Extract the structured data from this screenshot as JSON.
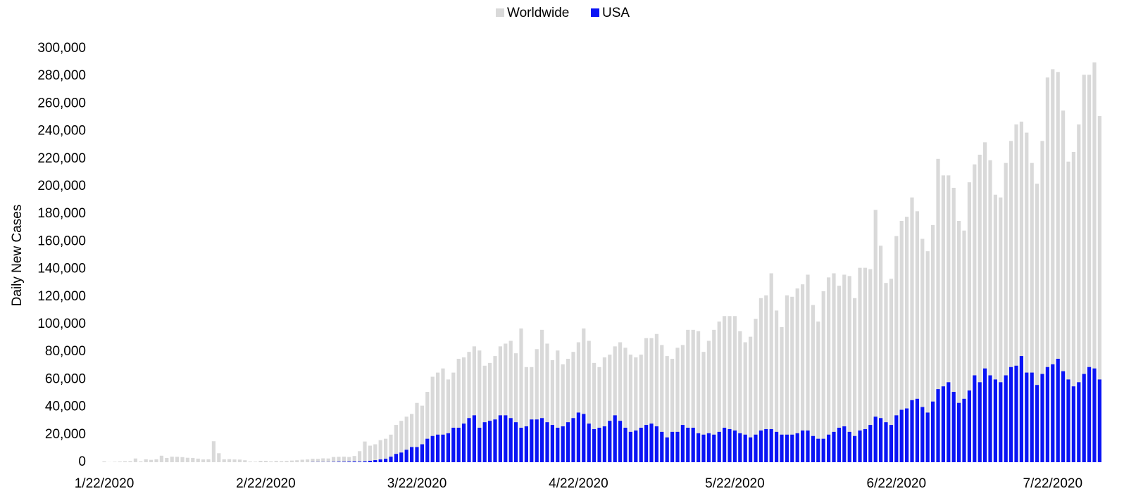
{
  "chart_data": {
    "type": "bar",
    "y_label": "Daily New Cases",
    "categories": [
      "1/22/2020",
      null,
      null,
      null,
      null,
      null,
      null,
      null,
      null,
      null,
      null,
      null,
      null,
      null,
      null,
      null,
      null,
      null,
      null,
      null,
      null,
      null,
      null,
      null,
      null,
      null,
      null,
      null,
      null,
      null,
      null,
      "2/22/2020",
      null,
      null,
      null,
      null,
      null,
      null,
      null,
      null,
      null,
      null,
      null,
      null,
      null,
      null,
      null,
      null,
      null,
      null,
      null,
      null,
      null,
      null,
      null,
      null,
      null,
      null,
      null,
      null,
      "3/22/2020",
      null,
      null,
      null,
      null,
      null,
      null,
      null,
      null,
      null,
      null,
      null,
      null,
      null,
      null,
      null,
      null,
      null,
      null,
      null,
      null,
      null,
      null,
      null,
      null,
      null,
      null,
      null,
      null,
      null,
      null,
      "4/22/2020",
      null,
      null,
      null,
      null,
      null,
      null,
      null,
      null,
      null,
      null,
      null,
      null,
      null,
      null,
      null,
      null,
      null,
      null,
      null,
      null,
      null,
      null,
      null,
      null,
      null,
      null,
      null,
      null,
      null,
      "5/22/2020",
      null,
      null,
      null,
      null,
      null,
      null,
      null,
      null,
      null,
      null,
      null,
      null,
      null,
      null,
      null,
      null,
      null,
      null,
      null,
      null,
      null,
      null,
      null,
      null,
      null,
      null,
      null,
      null,
      null,
      null,
      "6/22/2020",
      null,
      null,
      null,
      null,
      null,
      null,
      null,
      null,
      null,
      null,
      null,
      null,
      null,
      null,
      null,
      null,
      null,
      null,
      null,
      null,
      null,
      null,
      null,
      null,
      null,
      null,
      null,
      null,
      null,
      "7/22/2020",
      null,
      null,
      null,
      null,
      null,
      null,
      null,
      null,
      null
    ],
    "series": [
      {
        "name": "Worldwide",
        "color": "#d9d9d9",
        "values": [
          600,
          100,
          300,
          500,
          700,
          800,
          2700,
          600,
          2100,
          1700,
          2100,
          4700,
          3100,
          4000,
          3900,
          3700,
          3200,
          3100,
          2600,
          2000,
          2100,
          15200,
          6500,
          2100,
          2200,
          2000,
          1900,
          1400,
          500,
          400,
          1000,
          1000,
          600,
          900,
          800,
          900,
          1200,
          1400,
          1800,
          2000,
          2500,
          2400,
          2800,
          2700,
          3800,
          3900,
          4000,
          3800,
          4500,
          8000,
          15000,
          12000,
          13000,
          16000,
          17000,
          20000,
          27000,
          30000,
          33000,
          35000,
          43000,
          41000,
          51000,
          62000,
          65000,
          68000,
          60000,
          65000,
          75000,
          76000,
          80000,
          84000,
          81000,
          70000,
          72000,
          77000,
          84000,
          86000,
          88000,
          79000,
          97000,
          69000,
          69000,
          82000,
          96000,
          86000,
          74000,
          81000,
          71000,
          75000,
          80000,
          87000,
          97000,
          88000,
          72000,
          69000,
          76000,
          78000,
          84000,
          87000,
          83000,
          78000,
          76000,
          78000,
          90000,
          90000,
          93000,
          85000,
          77000,
          75000,
          83000,
          85000,
          96000,
          96000,
          95000,
          80000,
          88000,
          96000,
          102000,
          106000,
          106000,
          106000,
          95000,
          87000,
          91000,
          104000,
          119000,
          121000,
          137000,
          110000,
          98000,
          121000,
          120000,
          126000,
          129000,
          136000,
          114000,
          102000,
          124000,
          134000,
          137000,
          128000,
          136000,
          135000,
          119000,
          141000,
          141000,
          140000,
          183000,
          157000,
          130000,
          133000,
          164000,
          175000,
          178000,
          192000,
          182000,
          162000,
          153000,
          172000,
          220000,
          208000,
          208000,
          199000,
          175000,
          168000,
          203000,
          216000,
          223000,
          232000,
          219000,
          194000,
          192000,
          217000,
          233000,
          245000,
          247000,
          239000,
          217000,
          202000,
          233000,
          279000,
          285000,
          283000,
          255000,
          218000,
          225000,
          245000,
          281000,
          281000,
          290000,
          251000
        ]
      },
      {
        "name": "USA",
        "color": "#0a14f5",
        "values": [
          0,
          0,
          0,
          0,
          0,
          0,
          0,
          0,
          0,
          0,
          0,
          0,
          0,
          0,
          0,
          0,
          0,
          0,
          0,
          0,
          0,
          0,
          0,
          0,
          0,
          0,
          0,
          0,
          0,
          0,
          0,
          0,
          0,
          0,
          0,
          0,
          0,
          0,
          0,
          0,
          100,
          100,
          100,
          100,
          200,
          300,
          300,
          400,
          500,
          400,
          600,
          1000,
          1500,
          2000,
          2500,
          4000,
          6000,
          7000,
          9000,
          11000,
          11000,
          13000,
          17000,
          19000,
          20000,
          20000,
          21000,
          25000,
          25000,
          28000,
          32000,
          34000,
          25000,
          29000,
          30000,
          31000,
          34000,
          34000,
          32000,
          29000,
          25000,
          26000,
          31000,
          31000,
          32000,
          29000,
          27000,
          25000,
          26000,
          29000,
          32000,
          36000,
          35000,
          28000,
          24000,
          25000,
          26000,
          30000,
          34000,
          30000,
          25000,
          22000,
          23000,
          25000,
          27000,
          28000,
          26000,
          22000,
          18000,
          22000,
          22000,
          27000,
          25000,
          25000,
          21000,
          20000,
          21000,
          20000,
          22000,
          25000,
          24000,
          23000,
          21000,
          20000,
          18000,
          20000,
          23000,
          24000,
          24000,
          22000,
          20000,
          20000,
          20000,
          21000,
          23000,
          23000,
          19000,
          17000,
          17000,
          20000,
          22000,
          25000,
          26000,
          22000,
          19000,
          23000,
          24000,
          27000,
          33000,
          32000,
          29000,
          27000,
          34000,
          38000,
          39000,
          45000,
          46000,
          40000,
          36000,
          44000,
          53000,
          55000,
          58000,
          51000,
          43000,
          46000,
          52000,
          63000,
          58000,
          68000,
          63000,
          60000,
          58000,
          63000,
          69000,
          70000,
          77000,
          65000,
          65000,
          56000,
          64000,
          69000,
          71000,
          75000,
          66000,
          60000,
          55000,
          58000,
          64000,
          69000,
          68000,
          60000
        ]
      }
    ],
    "ylim": [
      0,
      300000
    ],
    "yticks": [
      0,
      {
        "value": 20000,
        "label": "20,000"
      },
      {
        "value": 40000,
        "label": "40,000"
      },
      {
        "value": 60000,
        "label": "60,000"
      },
      {
        "value": 80000,
        "label": "80,000"
      },
      {
        "value": 100000,
        "label": "100,000"
      },
      {
        "value": 120000,
        "label": "120,000"
      },
      {
        "value": 140000,
        "label": "140,000"
      },
      {
        "value": 160000,
        "label": "160,000"
      },
      {
        "value": 180000,
        "label": "180,000"
      },
      {
        "value": 200000,
        "label": "200,000"
      },
      {
        "value": 220000,
        "label": "220,000"
      },
      {
        "value": 240000,
        "label": "240,000"
      },
      {
        "value": 260000,
        "label": "260,000"
      },
      {
        "value": 280000,
        "label": "280,000"
      },
      {
        "value": 300000,
        "label": "300,000"
      }
    ],
    "grid": false,
    "legend": "top"
  }
}
